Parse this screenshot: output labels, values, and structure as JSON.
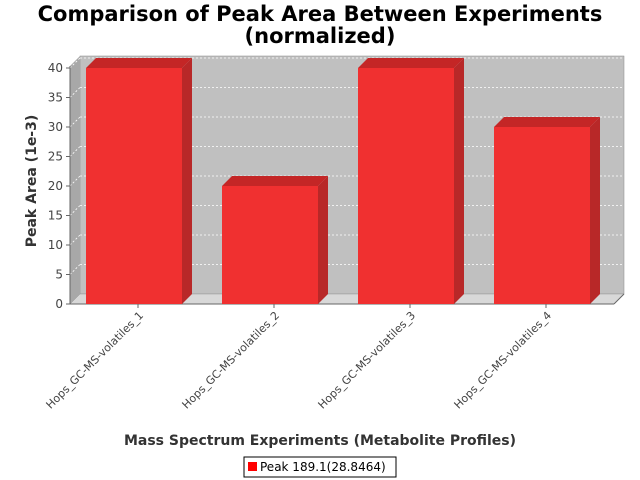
{
  "chart_data": {
    "type": "bar",
    "title_lines": [
      "Comparison of Peak Area Between Experiments",
      "(normalized)"
    ],
    "xlabel": "Mass Spectrum Experiments (Metabolite Profiles)",
    "ylabel": "Peak Area (1e-3)",
    "categories": [
      "Hops_GC-MS-volatiles_1",
      "Hops_GC-MS-volatiles_2",
      "Hops_GC-MS-volatiles_3",
      "Hops_GC-MS-volatiles_4"
    ],
    "series": [
      {
        "name": "Peak 189.1(28.8464)",
        "values": [
          40,
          20,
          40,
          30
        ]
      }
    ],
    "ylim": [
      0,
      40
    ],
    "yticks": [
      0,
      5,
      10,
      15,
      20,
      25,
      30,
      35,
      40
    ],
    "grid": true,
    "legend_position": "bottom-center",
    "colors": {
      "bar": "#f03030",
      "bar_top": "#c42626",
      "bar_side": "#b82828",
      "plot_bg": "#c0c0c0"
    }
  }
}
